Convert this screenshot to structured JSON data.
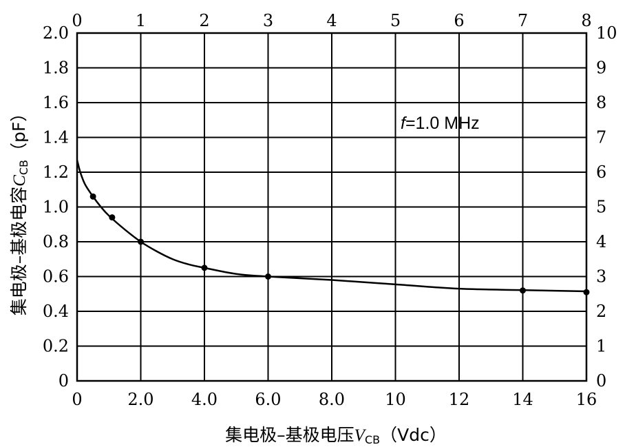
{
  "chart_data": {
    "type": "line",
    "xlabel_main": "集电极–基极电压",
    "xlabel_var": "V",
    "xlabel_sub": "CB",
    "xlabel_unit": "（Vdc）",
    "ylabel_main": "集电极–基极电容",
    "ylabel_var": "C",
    "ylabel_sub": "CB",
    "ylabel_unit": "（pF）",
    "annotation_var": "f",
    "annotation_rest": "=1.0 MHz",
    "xlim": [
      0,
      16
    ],
    "ylim": [
      0,
      2.0
    ],
    "x_ticks": [
      0,
      2,
      4,
      6,
      8,
      10,
      12,
      14,
      16
    ],
    "x_tick_labels": [
      "0",
      "2.0",
      "4.0",
      "6.0",
      "8.0",
      "10",
      "12",
      "14",
      "16"
    ],
    "y_ticks": [
      0,
      0.2,
      0.4,
      0.6,
      0.8,
      1.0,
      1.2,
      1.4,
      1.6,
      1.8,
      2.0
    ],
    "y_tick_labels": [
      "0",
      "0.2",
      "0.4",
      "0.6",
      "0.8",
      "1.0",
      "1.2",
      "1.4",
      "1.6",
      "1.8",
      "2.0"
    ],
    "top_xlim": [
      0,
      8
    ],
    "top_ticks": [
      0,
      1,
      2,
      3,
      4,
      5,
      6,
      7,
      8
    ],
    "top_tick_labels": [
      "0",
      "1",
      "2",
      "3",
      "4",
      "5",
      "6",
      "7",
      "8"
    ],
    "right_ylim": [
      0,
      10
    ],
    "right_ticks": [
      0,
      1,
      2,
      3,
      4,
      5,
      6,
      7,
      8,
      9,
      10
    ],
    "right_tick_labels": [
      "0",
      "1",
      "2",
      "3",
      "4",
      "5",
      "6",
      "7",
      "8",
      "9",
      "10"
    ],
    "grid": true,
    "series": [
      {
        "curve": {
          "x": [
            0,
            0.1,
            0.25,
            0.5,
            0.75,
            1.0,
            1.5,
            2.0,
            2.5,
            3.0,
            3.5,
            4.0,
            5.0,
            6.0,
            8.0,
            10.0,
            12.0,
            14.0,
            16.0
          ],
          "y": [
            1.27,
            1.2,
            1.13,
            1.06,
            1.0,
            0.95,
            0.87,
            0.8,
            0.745,
            0.7,
            0.67,
            0.65,
            0.615,
            0.6,
            0.58,
            0.555,
            0.53,
            0.522,
            0.515
          ]
        },
        "markers": {
          "x": [
            0.5,
            1.1,
            2.0,
            4.0,
            6.0,
            14.0,
            16.0
          ],
          "y": [
            1.06,
            0.94,
            0.8,
            0.65,
            0.6,
            0.52,
            0.51
          ]
        }
      }
    ]
  }
}
